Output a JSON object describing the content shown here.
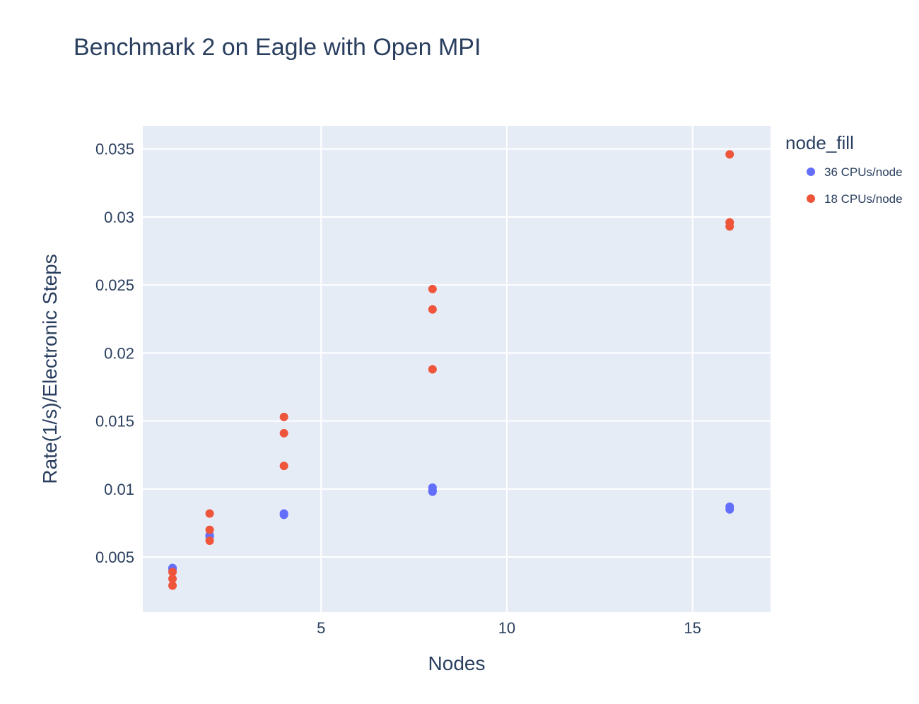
{
  "chart_data": {
    "type": "scatter",
    "title": "Benchmark 2 on Eagle with Open MPI",
    "xlabel": "Nodes",
    "ylabel": "Rate(1/s)/Electronic Steps",
    "xlim": [
      0.2,
      17.1
    ],
    "ylim": [
      0.00095,
      0.0367
    ],
    "x_ticks": [
      5,
      10,
      15
    ],
    "x_tick_labels": [
      "5",
      "10",
      "15"
    ],
    "y_ticks": [
      0.005,
      0.01,
      0.015,
      0.02,
      0.025,
      0.03,
      0.035
    ],
    "y_tick_labels": [
      "0.005",
      "0.01",
      "0.015",
      "0.02",
      "0.025",
      "0.03",
      "0.035"
    ],
    "grid": true,
    "legend": {
      "title": "node_fill",
      "position": "top-right"
    },
    "series": [
      {
        "name": "36 CPUs/node",
        "color": "#636efa",
        "points": [
          [
            1,
            0.0042
          ],
          [
            1,
            0.0041
          ],
          [
            2,
            0.0066
          ],
          [
            2,
            0.0065
          ],
          [
            4,
            0.0082
          ],
          [
            4,
            0.0081
          ],
          [
            8,
            0.0101
          ],
          [
            8,
            0.0099
          ],
          [
            8,
            0.0098
          ],
          [
            16,
            0.0087
          ],
          [
            16,
            0.0085
          ]
        ]
      },
      {
        "name": "18 CPUs/node",
        "color": "#ef553b",
        "points": [
          [
            1,
            0.0039
          ],
          [
            1,
            0.0034
          ],
          [
            1,
            0.0029
          ],
          [
            2,
            0.0082
          ],
          [
            2,
            0.007
          ],
          [
            2,
            0.0062
          ],
          [
            4,
            0.0153
          ],
          [
            4,
            0.0141
          ],
          [
            4,
            0.0117
          ],
          [
            8,
            0.0247
          ],
          [
            8,
            0.0232
          ],
          [
            8,
            0.0188
          ],
          [
            16,
            0.0346
          ],
          [
            16,
            0.0296
          ],
          [
            16,
            0.0293
          ]
        ]
      }
    ]
  }
}
